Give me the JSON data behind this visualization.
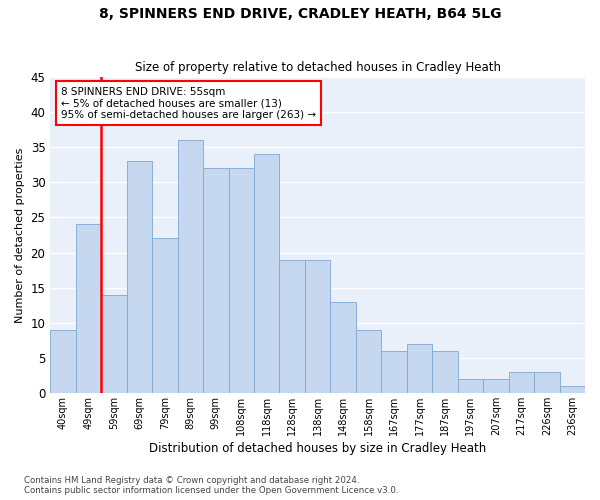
{
  "title": "8, SPINNERS END DRIVE, CRADLEY HEATH, B64 5LG",
  "subtitle": "Size of property relative to detached houses in Cradley Heath",
  "xlabel": "Distribution of detached houses by size in Cradley Heath",
  "ylabel": "Number of detached properties",
  "categories": [
    "40sqm",
    "49sqm",
    "59sqm",
    "69sqm",
    "79sqm",
    "89sqm",
    "99sqm",
    "108sqm",
    "118sqm",
    "128sqm",
    "138sqm",
    "148sqm",
    "158sqm",
    "167sqm",
    "177sqm",
    "187sqm",
    "197sqm",
    "207sqm",
    "217sqm",
    "226sqm",
    "236sqm"
  ],
  "values": [
    9,
    24,
    14,
    33,
    22,
    36,
    32,
    32,
    34,
    19,
    19,
    13,
    9,
    6,
    7,
    6,
    2,
    2,
    3,
    3,
    1
  ],
  "bar_color": "#c5d8f0",
  "bar_edge_color": "#7da8d4",
  "vline_color": "red",
  "vline_x": 1.5,
  "annotation_line1": "8 SPINNERS END DRIVE: 55sqm",
  "annotation_line2": "← 5% of detached houses are smaller (13)",
  "annotation_line3": "95% of semi-detached houses are larger (263) →",
  "annotation_box_facecolor": "white",
  "annotation_box_edgecolor": "red",
  "ylim": [
    0,
    45
  ],
  "yticks": [
    0,
    5,
    10,
    15,
    20,
    25,
    30,
    35,
    40,
    45
  ],
  "bg_color": "#eaf0fa",
  "grid_color": "white",
  "footer_line1": "Contains HM Land Registry data © Crown copyright and database right 2024.",
  "footer_line2": "Contains public sector information licensed under the Open Government Licence v3.0."
}
